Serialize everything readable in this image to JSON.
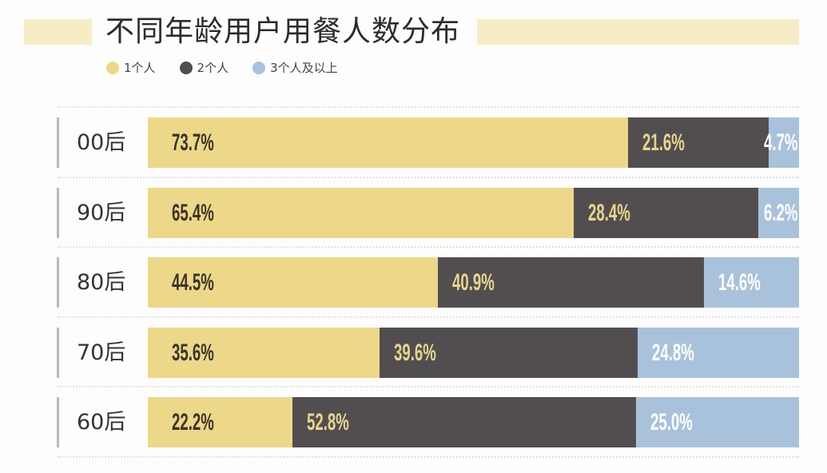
{
  "title": "不同年龄用户用餐人数分布",
  "legend": [
    {
      "label": "1个人",
      "color": "#ecd888"
    },
    {
      "label": "2个人",
      "color": "#524e50"
    },
    {
      "label": "3个人及以上",
      "color": "#a9c2db"
    }
  ],
  "chart_data": {
    "type": "bar",
    "orientation": "horizontal-stacked",
    "title": "不同年龄用户用餐人数分布",
    "categories": [
      "00后",
      "90后",
      "80后",
      "70后",
      "60后"
    ],
    "series": [
      {
        "name": "1个人",
        "color": "#ecd888",
        "label_color": "#3a332a",
        "values": [
          73.7,
          65.4,
          44.5,
          35.6,
          22.2
        ],
        "labels": [
          "73.7%",
          "65.4%",
          "44.5%",
          "35.6%",
          "22.2%"
        ]
      },
      {
        "name": "2个人",
        "color": "#524e50",
        "label_color": "#e8d68c",
        "values": [
          21.6,
          28.4,
          40.9,
          39.6,
          52.8
        ],
        "labels": [
          "21.6%",
          "28.4%",
          "40.9%",
          "39.6%",
          "52.8%"
        ]
      },
      {
        "name": "3个人及以上",
        "color": "#a9c2db",
        "label_color": "#ffffff",
        "values": [
          4.7,
          6.2,
          14.6,
          24.8,
          25.0
        ],
        "labels": [
          "4.7%",
          "6.2%",
          "14.6%",
          "24.8%",
          "25.0%"
        ]
      }
    ],
    "xlim": [
      0,
      100
    ],
    "legend_position": "top-left"
  }
}
